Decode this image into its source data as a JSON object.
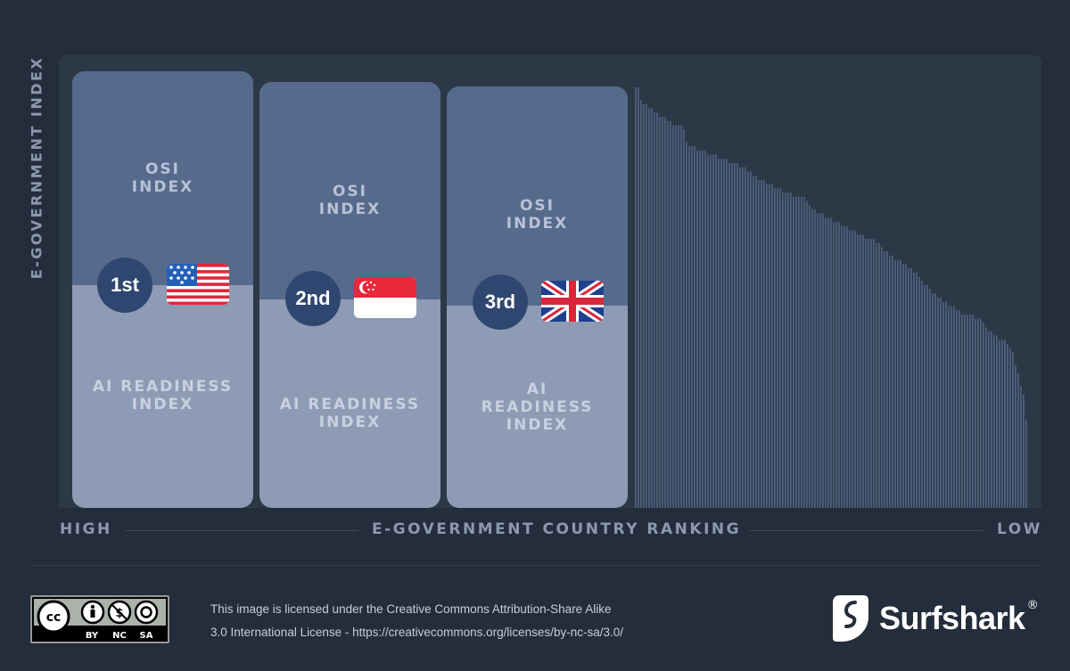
{
  "y_axis_label": "E-GOVERNMENT INDEX",
  "x_axis": {
    "title": "E-GOVERNMENT COUNTRY RANKING",
    "left": "HIGH",
    "right": "LOW"
  },
  "top3": [
    {
      "rank": "1st",
      "country": "United States",
      "flag": "us-flag",
      "top_label": "OSI\nINDEX",
      "bottom_label": "AI READINESS\nINDEX"
    },
    {
      "rank": "2nd",
      "country": "Singapore",
      "flag": "sg-flag",
      "top_label": "OSI\nINDEX",
      "bottom_label": "AI READINESS\nINDEX"
    },
    {
      "rank": "3rd",
      "country": "United Kingdom",
      "flag": "uk-flag",
      "top_label": "OSI\nINDEX",
      "bottom_label": "AI\nREADINESS\nINDEX"
    }
  ],
  "chart_data": {
    "type": "bar",
    "xlabel": "E-GOVERNMENT COUNTRY RANKING",
    "ylabel": "E-GOVERNMENT INDEX",
    "grid": false,
    "colors": {
      "bars": "#4d5f7d",
      "card_top": "#566a8c",
      "card_bottom": "#8e9bb4",
      "rank_badge": "#2f4670"
    },
    "values": [
      100,
      100,
      97,
      96,
      96,
      95,
      95,
      94,
      94,
      93,
      93,
      93,
      92,
      92,
      91,
      91,
      91,
      91,
      90,
      87,
      86,
      86,
      86,
      85,
      85,
      85,
      85,
      84,
      84,
      84,
      84,
      83,
      83,
      83,
      83,
      82,
      82,
      82,
      82,
      81,
      81,
      81,
      80,
      80,
      79,
      79,
      78,
      78,
      78,
      77,
      77,
      77,
      76,
      76,
      76,
      75,
      75,
      75,
      75,
      74,
      74,
      74,
      74,
      74,
      73,
      72,
      71,
      71,
      70,
      70,
      70,
      69,
      69,
      69,
      68,
      68,
      68,
      67,
      67,
      67,
      66,
      66,
      66,
      65,
      65,
      65,
      64,
      64,
      64,
      64,
      63,
      63,
      62,
      61,
      61,
      60,
      60,
      59,
      59,
      59,
      58,
      58,
      57,
      57,
      56,
      56,
      55,
      54,
      53,
      53,
      52,
      51,
      51,
      50,
      50,
      49,
      49,
      48,
      48,
      48,
      47,
      47,
      46,
      46,
      46,
      46,
      46,
      45,
      45,
      45,
      44,
      43,
      42,
      42,
      41,
      41,
      40,
      40,
      40,
      39,
      38,
      37,
      34,
      32,
      29,
      27,
      21
    ],
    "top3_split_osi_fraction": [
      0.49,
      0.51,
      0.52
    ]
  },
  "footer": {
    "license_line1": "This image is licensed under the Creative Commons Attribution-Share Alike",
    "license_line2": "3.0 International License - https://creativecommons.org/licenses/by-nc-sa/3.0/",
    "cc_badge": [
      "BY",
      "NC",
      "SA"
    ],
    "cc_logo_text": "cc",
    "brand": "Surfshark",
    "brand_mark": "®"
  }
}
